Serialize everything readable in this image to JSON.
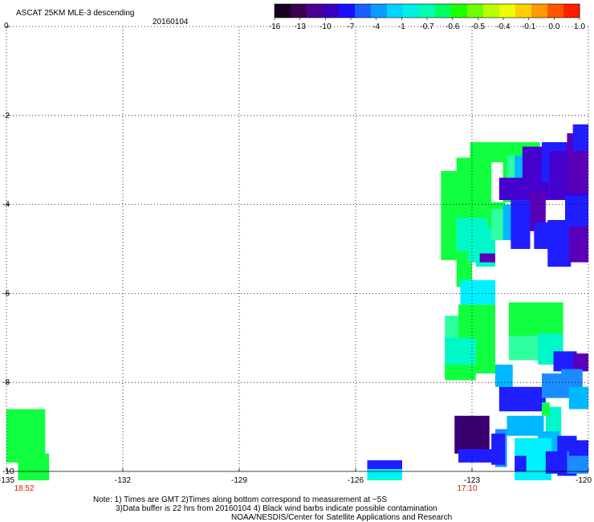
{
  "header": {
    "title": "ASCAT 25KM MLE-3 descending",
    "date": "20160104"
  },
  "colorbar": {
    "ticks": [
      "-16",
      "-13",
      "-10",
      "-7",
      "-4",
      "-1",
      "-0.7",
      "-0.6",
      "-0.5",
      "-0.4",
      "-0.1",
      "0.0",
      "1.0"
    ],
    "colors": [
      "#1a0020",
      "#3c0050",
      "#4a0090",
      "#3a00c0",
      "#1a10ff",
      "#1a60ff",
      "#0a9cff",
      "#00d4ff",
      "#00f0e8",
      "#00ffb0",
      "#00ff60",
      "#20ff00",
      "#70ff00",
      "#b8ff00",
      "#f0ff00",
      "#ffd000",
      "#ff9a00",
      "#ff5500",
      "#ff1e00"
    ]
  },
  "map": {
    "lon_range": [
      -135,
      -120
    ],
    "lat_range": [
      -10,
      0
    ],
    "x_ticks": [
      "-135",
      "-132",
      "-129",
      "-126",
      "-123",
      "-120"
    ],
    "y_ticks": [
      "0",
      "-2",
      "-4",
      "-6",
      "-8",
      "-10"
    ],
    "time_labels": [
      {
        "text": "18:52",
        "lon": -135
      },
      {
        "text": "17:10",
        "lon": -123
      }
    ],
    "cell_size_deg": 0.25,
    "colors": {
      "green": "#10ff40",
      "aqua": "#00f8c8",
      "cyan": "#00f0ff",
      "mint": "#30ffa0",
      "sky": "#00b8ff",
      "lightblue": "#1a8cff",
      "blue": "#1e1eff",
      "purple": "#4400cc",
      "violet": "#5a00b8",
      "dark": "#3a0070"
    },
    "cells": [
      [
        "green",
        -135.0,
        -8.6,
        1.0,
        1.2
      ],
      [
        "green",
        -134.7,
        -9.6,
        0.8,
        1.0
      ],
      [
        "green",
        -123.05,
        -2.6,
        1.8,
        0.45
      ],
      [
        "green",
        -123.05,
        -3.05,
        0.55,
        1.8
      ],
      [
        "green",
        -122.2,
        -3.05,
        0.55,
        0.9
      ],
      [
        "green",
        -123.4,
        -2.95,
        0.4,
        2.9
      ],
      [
        "green",
        -123.8,
        -3.25,
        0.5,
        2.0
      ],
      [
        "green",
        -122.6,
        -3.95,
        0.45,
        0.55
      ],
      [
        "aqua",
        -123.4,
        -4.3,
        0.8,
        0.75
      ],
      [
        "aqua",
        -122.9,
        -4.5,
        0.5,
        0.9
      ],
      [
        "mint",
        -122.5,
        -4.1,
        0.4,
        0.7
      ],
      [
        "sky",
        -122.2,
        -4.0,
        0.35,
        0.8
      ],
      [
        "mint",
        -122.1,
        -2.9,
        0.35,
        0.55
      ],
      [
        "sky",
        -121.9,
        -2.9,
        0.3,
        0.9
      ],
      [
        "purple",
        -121.7,
        -2.7,
        0.7,
        1.1
      ],
      [
        "purple",
        -122.3,
        -3.4,
        1.3,
        0.5
      ],
      [
        "blue",
        -121.2,
        -2.6,
        0.9,
        0.9
      ],
      [
        "purple",
        -121.0,
        -2.8,
        1.0,
        1.1
      ],
      [
        "violet",
        -120.55,
        -2.4,
        0.55,
        1.3
      ],
      [
        "blue",
        -120.4,
        -2.2,
        0.4,
        0.6
      ],
      [
        "blue",
        -120.6,
        -3.8,
        0.6,
        0.9
      ],
      [
        "violet",
        -121.55,
        -3.7,
        0.45,
        0.9
      ],
      [
        "blue",
        -122.0,
        -3.9,
        0.5,
        1.1
      ],
      [
        "blue",
        -121.05,
        -4.35,
        0.6,
        1.05
      ],
      [
        "blue",
        -121.4,
        -4.4,
        0.4,
        0.6
      ],
      [
        "violet",
        -120.5,
        -4.5,
        0.5,
        0.8
      ],
      [
        "violet",
        -122.9,
        -5.1,
        0.5,
        0.2
      ],
      [
        "aqua",
        -123.1,
        -5.05,
        0.3,
        0.25
      ],
      [
        "green",
        -123.05,
        -3.05,
        0.55,
        0.5
      ],
      [
        "cyan",
        -123.3,
        -5.7,
        0.9,
        0.55
      ],
      [
        "green",
        -123.35,
        -6.25,
        0.95,
        1.55
      ],
      [
        "mint",
        -123.7,
        -6.5,
        0.35,
        1.0
      ],
      [
        "aqua",
        -123.7,
        -7.0,
        0.8,
        0.75
      ],
      [
        "green",
        -123.7,
        -7.6,
        0.8,
        0.35
      ],
      [
        "green",
        -122.05,
        -6.2,
        1.4,
        0.8
      ],
      [
        "mint",
        -122.05,
        -6.95,
        0.9,
        0.55
      ],
      [
        "aqua",
        -121.3,
        -6.9,
        0.65,
        0.7
      ],
      [
        "sky",
        -122.4,
        -7.6,
        0.45,
        0.5
      ],
      [
        "blue",
        -122.3,
        -8.1,
        1.2,
        0.55
      ],
      [
        "lightblue",
        -121.2,
        -7.8,
        0.75,
        0.55
      ],
      [
        "blue",
        -120.9,
        -7.3,
        0.6,
        0.45
      ],
      [
        "violet",
        -120.4,
        -7.35,
        0.4,
        0.4
      ],
      [
        "lightblue",
        -120.7,
        -7.7,
        0.55,
        0.5
      ],
      [
        "sky",
        -120.5,
        -8.1,
        0.5,
        0.5
      ],
      [
        "aqua",
        -121.1,
        -8.55,
        0.4,
        0.7
      ],
      [
        "green",
        -121.2,
        -8.45,
        0.2,
        0.3
      ],
      [
        "sky",
        -121.3,
        -9.1,
        0.55,
        0.6
      ],
      [
        "blue",
        -120.8,
        -9.2,
        0.5,
        0.9
      ],
      [
        "lightblue",
        -120.55,
        -9.55,
        0.55,
        0.5
      ],
      [
        "blue",
        -120.5,
        -9.3,
        0.5,
        0.35
      ],
      [
        "sky",
        -122.1,
        -8.75,
        0.95,
        0.45
      ],
      [
        "lightblue",
        -122.4,
        -9.05,
        0.3,
        0.85
      ],
      [
        "cyan",
        -121.9,
        -9.25,
        0.95,
        1.0
      ],
      [
        "blue",
        -121.9,
        -9.65,
        0.3,
        0.35
      ],
      [
        "blue",
        -121.1,
        -9.55,
        0.35,
        0.5
      ],
      [
        "dark",
        -123.45,
        -8.75,
        0.9,
        0.85
      ],
      [
        "dark",
        -123.2,
        -9.15,
        0.4,
        0.3
      ],
      [
        "blue",
        -123.35,
        -9.5,
        0.9,
        0.3
      ],
      [
        "blue",
        -122.5,
        -9.15,
        0.35,
        0.7
      ],
      [
        "blue",
        -125.7,
        -9.75,
        0.9,
        0.2
      ],
      [
        "cyan",
        -125.7,
        -9.95,
        0.9,
        0.2
      ],
      [
        "aqua",
        -125.7,
        -10.15,
        0.9,
        0.2
      ]
    ]
  },
  "footer": {
    "note_line1": "Note: 1) Times are GMT 2)Times along bottom correspond to measurement at ~5S",
    "note_line2": "3)Data buffer is 22 hrs from 20160104 4) Black wind barbs indicate possible contamination",
    "credit": "NOAA/NESDIS/Center for Satellite Applications and Research"
  }
}
